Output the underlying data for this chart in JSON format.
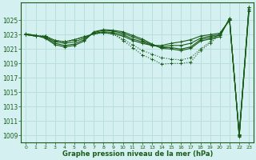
{
  "title": "Graphe pression niveau de la mer (hPa)",
  "background_color": "#d4f0f0",
  "grid_color": "#b8dede",
  "line_color": "#1a5c1a",
  "xlim": [
    -0.5,
    23.5
  ],
  "ylim": [
    1008.0,
    1027.5
  ],
  "yticks": [
    1009,
    1011,
    1013,
    1015,
    1017,
    1019,
    1021,
    1023,
    1025
  ],
  "xticks": [
    0,
    1,
    2,
    3,
    4,
    5,
    6,
    7,
    8,
    9,
    10,
    11,
    12,
    13,
    14,
    15,
    16,
    17,
    18,
    19,
    20,
    21,
    22,
    23
  ],
  "series": [
    [
      1023.0,
      1022.8,
      1022.8,
      1022.2,
      1022.0,
      1022.3,
      1022.7,
      1023.1,
      1023.3,
      1023.1,
      1022.8,
      1022.2,
      1021.8,
      1021.5,
      1021.5,
      1021.8,
      1022.0,
      1022.3,
      1022.8,
      1023.0,
      1023.2,
      1025.0,
      1009.2,
      1026.8
    ],
    [
      1023.0,
      1022.8,
      1022.7,
      1022.0,
      1021.8,
      1022.0,
      1022.5,
      1023.2,
      1023.4,
      1023.3,
      1023.0,
      1022.4,
      1022.0,
      1021.5,
      1021.3,
      1021.5,
      1021.5,
      1021.8,
      1022.5,
      1022.8,
      1023.0,
      1025.1,
      1009.0,
      1026.6
    ],
    [
      1023.1,
      1022.9,
      1022.6,
      1021.8,
      1021.5,
      1021.7,
      1022.3,
      1023.3,
      1023.6,
      1023.5,
      1023.2,
      1022.7,
      1022.2,
      1021.6,
      1021.2,
      1021.2,
      1021.0,
      1021.3,
      1022.3,
      1022.6,
      1022.9,
      1025.2,
      1008.9,
      1026.4
    ],
    [
      1023.1,
      1022.9,
      1022.5,
      1021.6,
      1021.3,
      1021.5,
      1022.1,
      1023.4,
      1023.7,
      1023.6,
      1023.4,
      1022.9,
      1022.4,
      1021.7,
      1021.1,
      1021.0,
      1020.8,
      1021.1,
      1022.1,
      1022.4,
      1022.7,
      1025.3,
      1008.8,
      1026.3
    ]
  ],
  "dotted_series": [
    [
      1023.0,
      1022.8,
      1022.8,
      1022.2,
      1022.0,
      1022.3,
      1022.7,
      1023.1,
      1023.3,
      1023.1,
      1022.4,
      1021.6,
      1020.8,
      1020.3,
      1019.8,
      1019.6,
      1019.5,
      1019.8,
      1021.0,
      1022.0,
      1023.2,
      1025.0,
      1009.2,
      1026.8
    ],
    [
      1023.0,
      1022.8,
      1022.8,
      1022.2,
      1022.0,
      1022.3,
      1022.7,
      1023.1,
      1023.3,
      1023.1,
      1022.2,
      1021.2,
      1020.2,
      1019.6,
      1019.2,
      1019.0,
      1019.0,
      1019.2,
      1020.8,
      1021.8,
      1023.0,
      1025.0,
      1009.0,
      1026.8
    ]
  ]
}
